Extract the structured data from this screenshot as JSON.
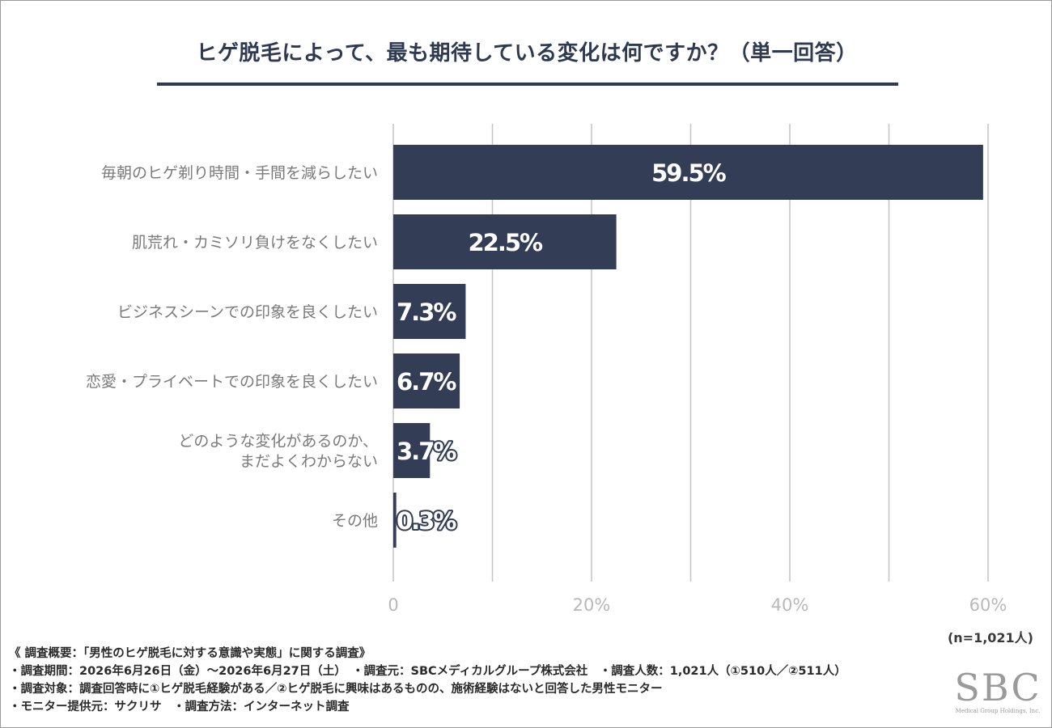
{
  "chart_data": {
    "type": "bar",
    "orientation": "horizontal",
    "title": "ヒゲ脱毛によって、最も期待している変化は何ですか？（単一回答）",
    "categories": [
      "毎朝のヒゲ剃り時間・手間を減らしたい",
      "肌荒れ・カミソリ負けをなくしたい",
      "ビジネスシーンでの印象を良くしたい",
      "恋愛・プライベートでの印象を良くしたい",
      "どのような変化があるのか、\nまだよくわからない",
      "その他"
    ],
    "values": [
      59.5,
      22.5,
      7.3,
      6.7,
      3.7,
      0.3
    ],
    "value_labels": [
      "59.5%",
      "22.5%",
      "7.3%",
      "6.7%",
      "3.7%",
      "0.3%"
    ],
    "xlim": [
      0,
      60
    ],
    "xticks": [
      0,
      20,
      40,
      60
    ],
    "xtick_labels": [
      "0",
      "20%",
      "40%",
      "60%"
    ],
    "grid": true,
    "bar_color": "#333d55",
    "sample_note": "(n=1,021人)"
  },
  "footnotes": [
    "《 調査概要：「男性のヒゲ脱毛に対する意識や実態」に関する調査》",
    "・調査期間：2026年6月26日（金）～2026年6月27日（土）　・調査元：SBCメディカルグループ株式会社　・調査人数：1,021人（①510人／②511人）",
    "・調査対象：調査回答時に①ヒゲ脱毛経験がある／②ヒゲ脱毛に興味はあるものの、施術経験はないと回答した男性モニター",
    "・モニター提供元：サクリサ　・調査方法：インターネット調査"
  ],
  "logo": {
    "text": "SBC",
    "subtext": "Medical Group Holdings, Inc."
  }
}
